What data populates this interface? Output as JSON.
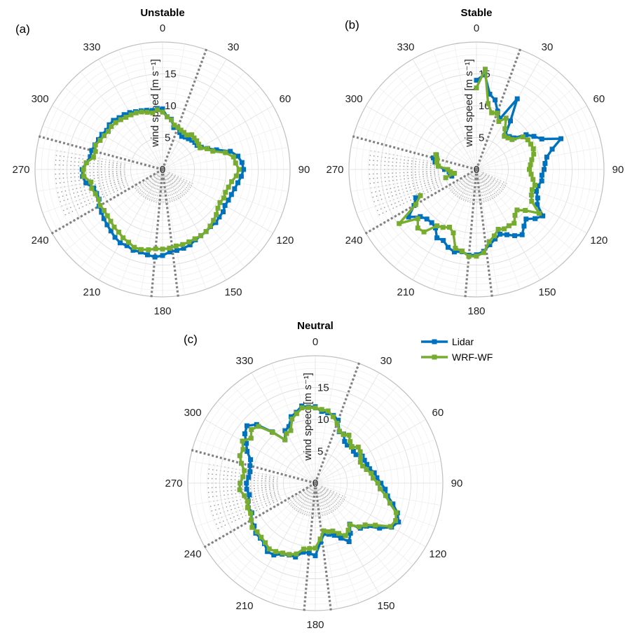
{
  "colors": {
    "lidar": "#0072bd",
    "wrf": "#77ac30",
    "sector": "#808080",
    "grid": "#dddddd",
    "grid_minor": "#ececec",
    "outer": "#bfbfbf"
  },
  "legend": {
    "placement": "right of panel c",
    "entries": [
      "Lidar",
      "WRF-WF"
    ]
  },
  "chart_data": [
    {
      "type": "polar-line",
      "panel_label": "(a)",
      "title": "Unstable",
      "rlabel": "wind speed [m s⁻¹]",
      "rticks": [
        5,
        10,
        15
      ],
      "rlim": [
        0,
        20
      ],
      "theta_ticks": [
        0,
        30,
        60,
        90,
        120,
        150,
        180,
        210,
        240,
        270,
        300,
        330
      ],
      "theta_zero": "top",
      "theta_direction": "clockwise",
      "sector_lines_deg": [
        20,
        173,
        185,
        240,
        285
      ],
      "series": [
        {
          "name": "Lidar",
          "theta": [
            0,
            5,
            10,
            15,
            20,
            25,
            30,
            35,
            40,
            45,
            50,
            55,
            60,
            65,
            70,
            75,
            80,
            85,
            90,
            95,
            100,
            105,
            110,
            115,
            120,
            125,
            130,
            135,
            140,
            145,
            150,
            155,
            160,
            165,
            170,
            175,
            180,
            185,
            190,
            195,
            200,
            205,
            210,
            215,
            220,
            225,
            230,
            235,
            240,
            245,
            250,
            255,
            260,
            265,
            270,
            275,
            280,
            285,
            290,
            295,
            300,
            305,
            310,
            315,
            320,
            325,
            330,
            335,
            340,
            345,
            350,
            355,
            360
          ],
          "r": [
            9.5,
            8.3,
            8.0,
            6.8,
            7.0,
            6.4,
            6.0,
            6.2,
            6.3,
            6.5,
            6.6,
            6.6,
            7.0,
            7.8,
            9.0,
            11.0,
            12.0,
            12.5,
            12.7,
            12.4,
            12.0,
            11.7,
            11.5,
            11.4,
            11.3,
            11.6,
            11.6,
            11.8,
            11.7,
            11.9,
            12.0,
            12.2,
            12.6,
            12.8,
            12.9,
            13.0,
            13.5,
            13.8,
            13.6,
            13.4,
            13.5,
            13.2,
            13.3,
            13.0,
            12.6,
            12.3,
            12.0,
            11.7,
            11.5,
            11.0,
            11.0,
            11.2,
            12.2,
            12.6,
            12.6,
            12.0,
            11.5,
            11.5,
            11.3,
            11.1,
            11.0,
            10.7,
            10.9,
            10.9,
            10.6,
            10.5,
            10.3,
            10.0,
            9.8,
            9.6,
            9.4,
            9.6,
            9.5
          ]
        },
        {
          "name": "WRF-WF",
          "theta": [
            0,
            5,
            10,
            15,
            20,
            25,
            30,
            35,
            40,
            45,
            50,
            55,
            60,
            65,
            70,
            75,
            80,
            85,
            90,
            95,
            100,
            105,
            110,
            115,
            120,
            125,
            130,
            135,
            140,
            145,
            150,
            155,
            160,
            165,
            170,
            175,
            180,
            185,
            190,
            195,
            200,
            205,
            210,
            215,
            220,
            225,
            230,
            235,
            240,
            245,
            250,
            255,
            260,
            265,
            270,
            275,
            280,
            285,
            290,
            295,
            300,
            305,
            310,
            315,
            320,
            325,
            330,
            335,
            340,
            345,
            350,
            355,
            360
          ],
          "r": [
            9.0,
            8.3,
            7.9,
            7.2,
            7.0,
            6.8,
            6.7,
            6.6,
            7.1,
            7.0,
            7.0,
            6.9,
            6.8,
            7.7,
            8.4,
            10.2,
            11.3,
            11.5,
            12.0,
            11.6,
            11.0,
            10.7,
            10.5,
            10.6,
            10.4,
            10.6,
            11.0,
            11.3,
            11.6,
            11.9,
            12.0,
            12.0,
            12.1,
            12.2,
            12.2,
            12.4,
            12.5,
            12.5,
            12.8,
            13.0,
            13.0,
            12.6,
            12.4,
            12.0,
            11.8,
            11.5,
            11.3,
            11.2,
            11.3,
            11.1,
            11.2,
            11.5,
            11.4,
            12.4,
            12.4,
            12.0,
            11.0,
            10.9,
            11.2,
            10.8,
            10.6,
            10.4,
            10.5,
            10.4,
            10.2,
            10.0,
            9.9,
            9.8,
            9.6,
            9.3,
            9.0,
            9.4,
            9.0
          ]
        }
      ]
    },
    {
      "type": "polar-line",
      "panel_label": "(b)",
      "title": "Stable",
      "rlabel": "wind speed [m s⁻¹]",
      "rticks": [
        5,
        10,
        15
      ],
      "rlim": [
        0,
        20
      ],
      "theta_ticks": [
        0,
        30,
        60,
        90,
        120,
        150,
        180,
        210,
        240,
        270,
        300,
        330
      ],
      "theta_zero": "top",
      "theta_direction": "clockwise",
      "sector_lines_deg": [
        20,
        173,
        185,
        240,
        285
      ],
      "series": [
        {
          "name": "Lidar",
          "theta": [
            0,
            5,
            10,
            15,
            20,
            25,
            30,
            35,
            40,
            45,
            50,
            55,
            60,
            65,
            70,
            75,
            80,
            85,
            90,
            95,
            100,
            105,
            110,
            115,
            120,
            125,
            130,
            135,
            140,
            145,
            150,
            155,
            160,
            165,
            170,
            175,
            180,
            185,
            190,
            195,
            200,
            205,
            210,
            215,
            220,
            225,
            230,
            235,
            240,
            245,
            250,
            255,
            260,
            265,
            270,
            275,
            280,
            285,
            290,
            295,
            300,
            305,
            310,
            315,
            320,
            325,
            330,
            335,
            340,
            345,
            350,
            355,
            360
          ],
          "r": [
            14.0,
            15.0,
            12.0,
            11.3,
            9.7,
            8.8,
            12.8,
            9.3,
            7.0,
            7.3,
            7.7,
            9.5,
            10.4,
            11.3,
            14.1,
            12.3,
            11.2,
            10.8,
            10.6,
            10.3,
            10.4,
            10.0,
            10.0,
            10.6,
            11.0,
            12.7,
            12.0,
            11.0,
            11.6,
            12.5,
            12.0,
            11.3,
            10.8,
            11.3,
            12.0,
            12.9,
            13.4,
            13.5,
            13.1,
            13.4,
            13.0,
            12.3,
            12.4,
            11.2,
            10.9,
            11.0,
            11.5,
            13.0,
            11.3,
            10.5,
            null,
            4.0,
            4.2,
            4.3,
            5.0,
            6.0,
            6.6,
            7.0,
            6.7,
            null,
            null,
            null,
            null,
            null,
            null,
            null,
            null,
            null,
            null,
            null,
            null,
            null,
            14.0
          ]
        },
        {
          "name": "WRF-WF",
          "theta": [
            0,
            5,
            10,
            15,
            20,
            25,
            30,
            35,
            40,
            45,
            50,
            55,
            60,
            65,
            70,
            75,
            80,
            85,
            90,
            95,
            100,
            105,
            110,
            115,
            120,
            125,
            130,
            135,
            140,
            145,
            150,
            155,
            160,
            165,
            170,
            175,
            180,
            185,
            190,
            195,
            200,
            205,
            210,
            215,
            220,
            225,
            230,
            235,
            240,
            245,
            250,
            255,
            260,
            265,
            270,
            275,
            280,
            285,
            290,
            295,
            300,
            305,
            310,
            315,
            320,
            325,
            330,
            335,
            340,
            345,
            350,
            355,
            360
          ],
          "r": [
            12.8,
            15.8,
            10.5,
            9.2,
            9.4,
            8.3,
            9.3,
            7.8,
            6.8,
            7.0,
            7.3,
            8.9,
            9.3,
            9.4,
            9.5,
            9.3,
            8.8,
            8.5,
            8.3,
            8.6,
            9.0,
            9.5,
            9.3,
            9.5,
            10.0,
            12.0,
            10.0,
            9.0,
            9.4,
            10.3,
            10.2,
            10.3,
            10.0,
            10.8,
            11.5,
            13.1,
            13.6,
            13.7,
            13.0,
            12.8,
            10.6,
            10.0,
            10.5,
            10.8,
            12.8,
            13.0,
            12.0,
            14.8,
            11.0,
            9.7,
            null,
            5.0,
            3.5,
            4.1,
            4.5,
            6.0,
            6.3,
            6.4,
            6.8,
            null,
            null,
            null,
            null,
            null,
            null,
            null,
            null,
            null,
            null,
            null,
            null,
            null,
            12.8
          ]
        }
      ]
    },
    {
      "type": "polar-line",
      "panel_label": "(c)",
      "title": "Neutral",
      "rlabel": "wind speed [m s⁻¹]",
      "rticks": [
        5,
        10,
        15
      ],
      "rlim": [
        0,
        20
      ],
      "theta_ticks": [
        0,
        30,
        60,
        90,
        120,
        150,
        180,
        210,
        240,
        270,
        300,
        330
      ],
      "theta_zero": "top",
      "theta_direction": "clockwise",
      "sector_lines_deg": [
        20,
        173,
        185,
        240,
        285
      ],
      "series": [
        {
          "name": "Lidar",
          "theta": [
            0,
            5,
            10,
            15,
            20,
            25,
            30,
            35,
            40,
            45,
            50,
            55,
            60,
            65,
            70,
            75,
            80,
            85,
            90,
            95,
            100,
            105,
            110,
            115,
            120,
            125,
            130,
            135,
            140,
            145,
            150,
            155,
            160,
            165,
            170,
            175,
            180,
            185,
            190,
            195,
            200,
            205,
            210,
            215,
            220,
            225,
            230,
            235,
            240,
            245,
            250,
            255,
            260,
            265,
            270,
            275,
            280,
            285,
            290,
            295,
            300,
            305,
            310,
            315,
            320,
            325,
            330,
            335,
            340,
            345,
            350,
            355,
            360
          ],
          "r": [
            12.0,
            11.3,
            11.2,
            11.0,
            10.5,
            8.9,
            8.9,
            8.0,
            7.8,
            8.1,
            7.8,
            7.8,
            8.5,
            8.5,
            8.6,
            8.8,
            9.4,
            9.7,
            10.3,
            11.0,
            11.5,
            12.6,
            13.7,
            14.4,
            13.8,
            12.3,
            10.5,
            10.0,
            8.4,
            9.6,
            10.6,
            9.5,
            8.7,
            8.3,
            8.0,
            9.3,
            11.4,
            11.0,
            11.0,
            12.0,
            12.0,
            12.3,
            13.0,
            13.1,
            12.4,
            12.2,
            12.2,
            11.7,
            11.6,
            11.0,
            11.2,
            10.9,
            10.5,
            10.8,
            10.8,
            10.5,
            10.4,
            10.6,
            10.8,
            11.8,
            12.5,
            13.5,
            14.0,
            13.0,
            10.5,
            8.3,
            9.5,
            9.8,
            11.1,
            11.5,
            12.3,
            12.0,
            12.0
          ]
        },
        {
          "name": "WRF-WF",
          "theta": [
            0,
            5,
            10,
            15,
            20,
            25,
            30,
            35,
            40,
            45,
            50,
            55,
            60,
            65,
            70,
            75,
            80,
            85,
            90,
            95,
            100,
            105,
            110,
            115,
            120,
            125,
            130,
            135,
            140,
            145,
            150,
            155,
            160,
            165,
            170,
            175,
            180,
            185,
            190,
            195,
            200,
            205,
            210,
            215,
            220,
            225,
            230,
            235,
            240,
            245,
            250,
            255,
            260,
            265,
            270,
            275,
            280,
            285,
            290,
            295,
            300,
            305,
            310,
            315,
            320,
            325,
            330,
            335,
            340,
            345,
            350,
            355,
            360
          ],
          "r": [
            11.8,
            11.6,
            11.5,
            10.8,
            10.0,
            9.0,
            8.8,
            9.2,
            8.5,
            8.0,
            8.8,
            8.6,
            8.2,
            7.8,
            7.9,
            8.3,
            8.9,
            9.1,
            9.8,
            10.2,
            11.2,
            12.1,
            13.5,
            13.9,
            13.6,
            11.5,
            10.2,
            9.7,
            8.5,
            9.0,
            9.5,
            8.7,
            8.0,
            7.9,
            7.6,
            8.8,
            10.2,
            10.3,
            10.5,
            11.5,
            11.9,
            12.1,
            12.4,
            12.6,
            12.2,
            12.0,
            11.9,
            12.1,
            11.6,
            11.2,
            11.3,
            11.0,
            11.3,
            11.9,
            11.8,
            11.4,
            11.3,
            12.0,
            12.6,
            12.5,
            13.2,
            12.3,
            13.1,
            12.6,
            10.4,
            8.3,
            9.0,
            9.1,
            10.7,
            11.3,
            12.0,
            11.9,
            11.8
          ]
        }
      ]
    }
  ]
}
